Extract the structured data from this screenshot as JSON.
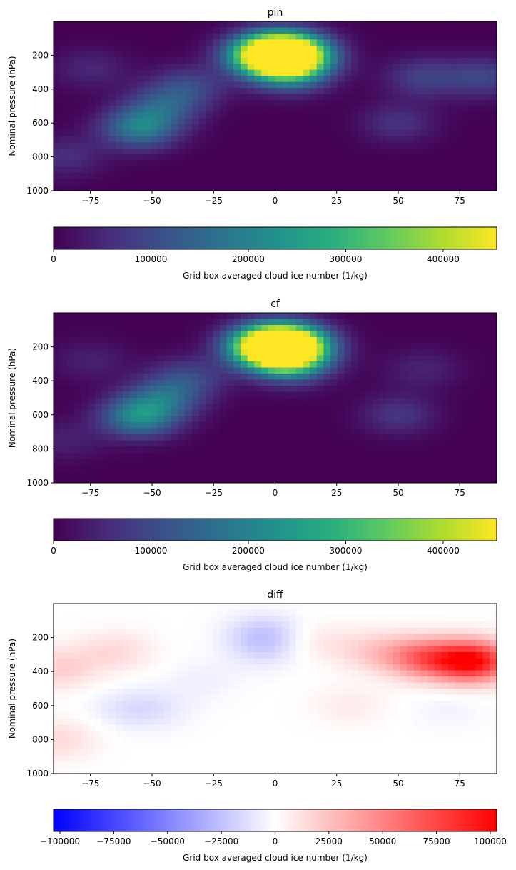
{
  "chart_data": [
    {
      "type": "heatmap",
      "title": "pin",
      "ylabel": "Nominal pressure (hPa)",
      "xlabel": "",
      "xlim": [
        -90,
        90
      ],
      "ylim": [
        1000,
        0
      ],
      "xticks": [
        -75,
        -50,
        -25,
        0,
        25,
        50,
        75
      ],
      "yticks": [
        200,
        400,
        600,
        800,
        1000
      ],
      "colormap": "viridis",
      "colorbar": {
        "label": "Grid box averaged cloud ice number (1/kg)",
        "range": [
          0,
          455000
        ],
        "ticks": [
          0,
          100000,
          200000,
          300000,
          400000
        ]
      },
      "features": [
        {
          "lat": 7,
          "p": 195,
          "value": 455000
        },
        {
          "lat": -4,
          "p": 195,
          "value": 330000
        },
        {
          "lat": 0,
          "p": 200,
          "value": 180000
        },
        {
          "lat": 7,
          "p": 300,
          "value": 150000
        },
        {
          "lat": -55,
          "p": 630,
          "value": 190000
        },
        {
          "lat": -45,
          "p": 500,
          "value": 110000
        },
        {
          "lat": -35,
          "p": 380,
          "value": 90000
        },
        {
          "lat": -75,
          "p": 280,
          "value": 50000
        },
        {
          "lat": 60,
          "p": 330,
          "value": 85000
        },
        {
          "lat": 85,
          "p": 330,
          "value": 90000
        },
        {
          "lat": 50,
          "p": 600,
          "value": 65000
        },
        {
          "lat": -85,
          "p": 800,
          "value": 60000
        }
      ]
    },
    {
      "type": "heatmap",
      "title": "cf",
      "ylabel": "Nominal pressure (hPa)",
      "xlabel": "",
      "xlim": [
        -90,
        90
      ],
      "ylim": [
        1000,
        0
      ],
      "xticks": [
        -75,
        -50,
        -25,
        0,
        25,
        50,
        75
      ],
      "yticks": [
        200,
        400,
        600,
        800,
        1000
      ],
      "colormap": "viridis",
      "colorbar": {
        "label": "Grid box averaged cloud ice number (1/kg)",
        "range": [
          0,
          455000
        ],
        "ticks": [
          0,
          100000,
          200000,
          300000,
          400000
        ]
      },
      "features": [
        {
          "lat": 7,
          "p": 195,
          "value": 430000
        },
        {
          "lat": -4,
          "p": 195,
          "value": 350000
        },
        {
          "lat": 0,
          "p": 200,
          "value": 200000
        },
        {
          "lat": 7,
          "p": 300,
          "value": 160000
        },
        {
          "lat": -55,
          "p": 610,
          "value": 210000
        },
        {
          "lat": -45,
          "p": 500,
          "value": 120000
        },
        {
          "lat": -35,
          "p": 380,
          "value": 90000
        },
        {
          "lat": -75,
          "p": 280,
          "value": 40000
        },
        {
          "lat": 60,
          "p": 330,
          "value": 45000
        },
        {
          "lat": 50,
          "p": 600,
          "value": 70000
        },
        {
          "lat": -85,
          "p": 750,
          "value": 40000
        }
      ]
    },
    {
      "type": "heatmap",
      "title": "diff",
      "ylabel": "Nominal pressure (hPa)",
      "xlabel": "",
      "xlim": [
        -90,
        90
      ],
      "ylim": [
        1000,
        0
      ],
      "xticks": [
        -75,
        -50,
        -25,
        0,
        25,
        50,
        75
      ],
      "yticks": [
        200,
        400,
        600,
        800,
        1000
      ],
      "colormap": "bwr",
      "colorbar": {
        "label": "Grid box averaged cloud ice number (1/kg)",
        "range": [
          -103000,
          103000
        ],
        "ticks": [
          -100000,
          -75000,
          -50000,
          -25000,
          0,
          25000,
          50000,
          75000,
          100000
        ]
      },
      "features": [
        {
          "lat": 80,
          "p": 340,
          "value": 100000
        },
        {
          "lat": 60,
          "p": 320,
          "value": 55000
        },
        {
          "lat": 40,
          "p": 280,
          "value": 18000
        },
        {
          "lat": -88,
          "p": 380,
          "value": 20000
        },
        {
          "lat": -65,
          "p": 280,
          "value": 15000
        },
        {
          "lat": -88,
          "p": 800,
          "value": 15000
        },
        {
          "lat": -4,
          "p": 180,
          "value": -22000
        },
        {
          "lat": -4,
          "p": 280,
          "value": -10000
        },
        {
          "lat": -60,
          "p": 620,
          "value": -10000
        },
        {
          "lat": -48,
          "p": 620,
          "value": -8000
        },
        {
          "lat": -30,
          "p": 450,
          "value": -6000
        },
        {
          "lat": 70,
          "p": 620,
          "value": -5000
        },
        {
          "lat": 15,
          "p": 220,
          "value": 10000
        },
        {
          "lat": 30,
          "p": 600,
          "value": 8000
        }
      ]
    }
  ]
}
